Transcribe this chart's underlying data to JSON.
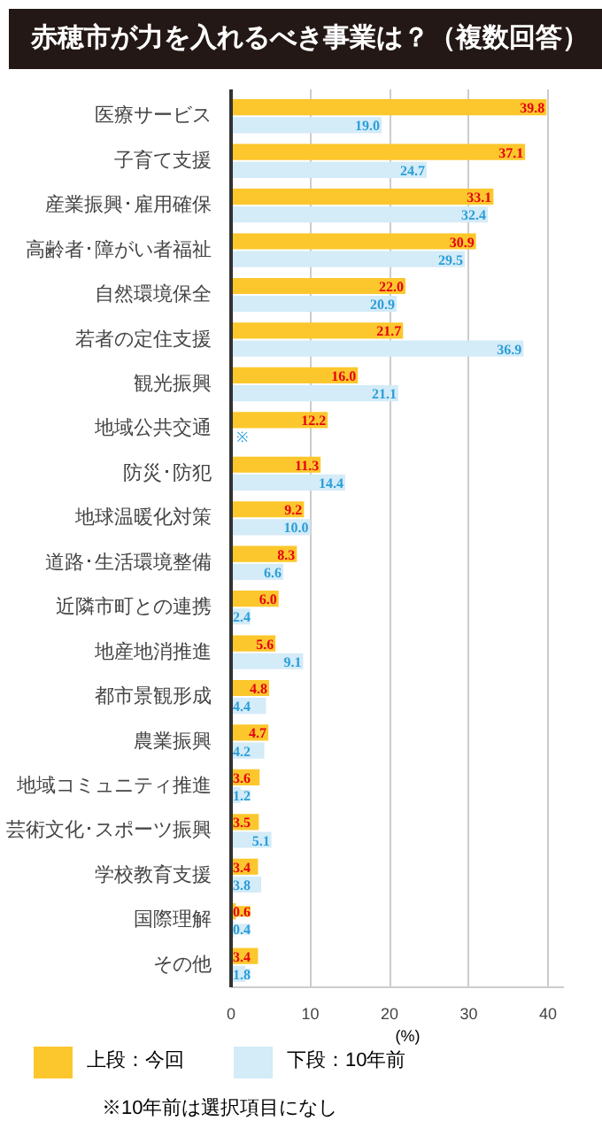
{
  "chart_data": {
    "type": "bar",
    "orientation": "horizontal",
    "title": "赤穂市が力を入れるべき事業は？（複数回答）",
    "xlabel": "(%)",
    "categories": [
      "医療サービス",
      "子育て支援",
      "産業振興･雇用確保",
      "高齢者･障がい者福祉",
      "自然環境保全",
      "若者の定住支援",
      "観光振興",
      "地域公共交通",
      "防災･防犯",
      "地球温暖化対策",
      "道路･生活環境整備",
      "近隣市町との連携",
      "地産地消推進",
      "都市景観形成",
      "農業振興",
      "地域コミュニティ推進",
      "芸術文化･スポーツ振興",
      "学校教育支援",
      "国際理解",
      "その他"
    ],
    "series": [
      {
        "name": "上段：今回",
        "color": "#fcc72c",
        "values": [
          39.8,
          37.1,
          33.1,
          30.9,
          22.0,
          21.7,
          16.0,
          12.2,
          11.3,
          9.2,
          8.3,
          6.0,
          5.6,
          4.8,
          4.7,
          3.6,
          3.5,
          3.4,
          0.6,
          3.4
        ],
        "value_labels": [
          "39.8",
          "37.1",
          "33.1",
          "30.9",
          "22.0",
          "21.7",
          "16.0",
          "12.2",
          "11.3",
          "9.2",
          "8.3",
          "6.0",
          "5.6",
          "4.8",
          "4.7",
          "3.6",
          "3.5",
          "3.4",
          "0.6",
          "3.4"
        ]
      },
      {
        "name": "下段：10年前",
        "color": "#d4ebf8",
        "values": [
          19.0,
          24.7,
          32.4,
          29.5,
          20.9,
          36.9,
          21.1,
          null,
          14.4,
          10.0,
          6.6,
          2.4,
          9.1,
          4.4,
          4.2,
          1.2,
          5.1,
          3.8,
          0.4,
          1.8
        ],
        "value_labels": [
          "19.0",
          "24.7",
          "32.4",
          "29.5",
          "20.9",
          "36.9",
          "21.1",
          null,
          "14.4",
          "10.0",
          "6.6",
          "2.4",
          "9.1",
          "4.4",
          "4.2",
          "1.2",
          "5.1",
          "3.8",
          "0.4",
          "1.8"
        ]
      }
    ],
    "xlim": [
      0,
      42
    ],
    "xticks": [
      0,
      10,
      20,
      30,
      40
    ],
    "grid": "x",
    "legend": "bottom",
    "annotations": [
      {
        "text": "※",
        "x": 0,
        "y": "地域公共交通"
      },
      "※10年前は選択項目になし"
    ]
  }
}
